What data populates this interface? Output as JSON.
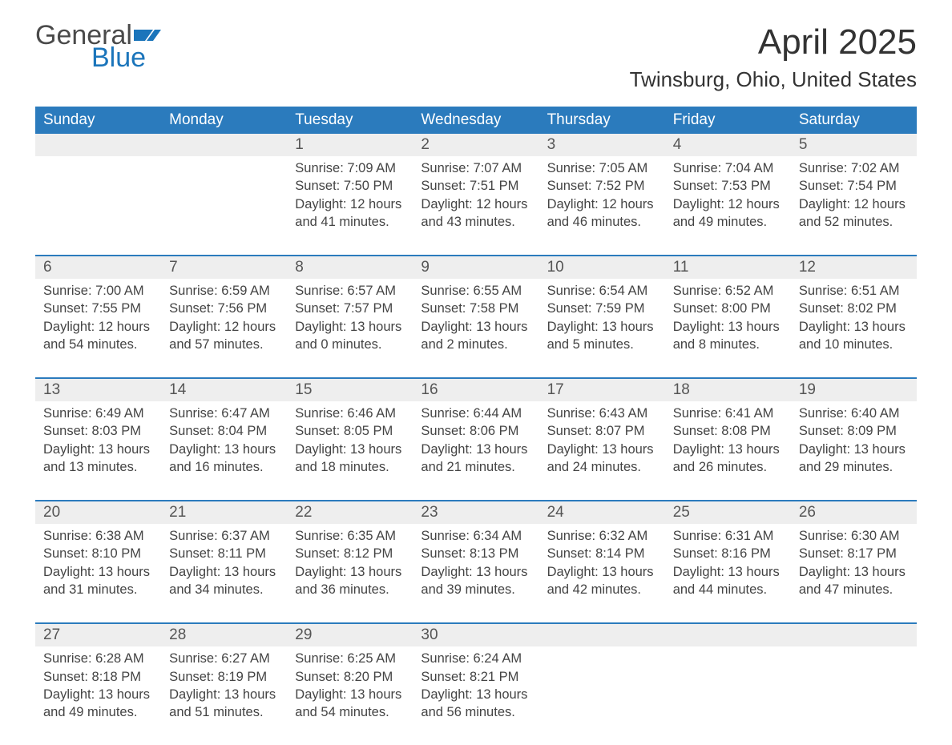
{
  "logo": {
    "word1": "General",
    "word2": "Blue",
    "flag_color": "#1b75bb"
  },
  "title": "April 2025",
  "location": "Twinsburg, Ohio, United States",
  "colors": {
    "header_bg": "#2b7bbd",
    "header_text": "#ffffff",
    "daynum_bg": "#eeeeee",
    "week_border": "#2b7bbd",
    "body_text": "#444444",
    "title_text": "#333333",
    "logo_gray": "#4a4a4a",
    "logo_blue": "#1b75bb",
    "page_bg": "#ffffff"
  },
  "days_of_week": [
    "Sunday",
    "Monday",
    "Tuesday",
    "Wednesday",
    "Thursday",
    "Friday",
    "Saturday"
  ],
  "weeks": [
    [
      {
        "n": "",
        "sr": "",
        "ss": "",
        "dl": ""
      },
      {
        "n": "",
        "sr": "",
        "ss": "",
        "dl": ""
      },
      {
        "n": "1",
        "sr": "Sunrise: 7:09 AM",
        "ss": "Sunset: 7:50 PM",
        "dl": "Daylight: 12 hours and 41 minutes."
      },
      {
        "n": "2",
        "sr": "Sunrise: 7:07 AM",
        "ss": "Sunset: 7:51 PM",
        "dl": "Daylight: 12 hours and 43 minutes."
      },
      {
        "n": "3",
        "sr": "Sunrise: 7:05 AM",
        "ss": "Sunset: 7:52 PM",
        "dl": "Daylight: 12 hours and 46 minutes."
      },
      {
        "n": "4",
        "sr": "Sunrise: 7:04 AM",
        "ss": "Sunset: 7:53 PM",
        "dl": "Daylight: 12 hours and 49 minutes."
      },
      {
        "n": "5",
        "sr": "Sunrise: 7:02 AM",
        "ss": "Sunset: 7:54 PM",
        "dl": "Daylight: 12 hours and 52 minutes."
      }
    ],
    [
      {
        "n": "6",
        "sr": "Sunrise: 7:00 AM",
        "ss": "Sunset: 7:55 PM",
        "dl": "Daylight: 12 hours and 54 minutes."
      },
      {
        "n": "7",
        "sr": "Sunrise: 6:59 AM",
        "ss": "Sunset: 7:56 PM",
        "dl": "Daylight: 12 hours and 57 minutes."
      },
      {
        "n": "8",
        "sr": "Sunrise: 6:57 AM",
        "ss": "Sunset: 7:57 PM",
        "dl": "Daylight: 13 hours and 0 minutes."
      },
      {
        "n": "9",
        "sr": "Sunrise: 6:55 AM",
        "ss": "Sunset: 7:58 PM",
        "dl": "Daylight: 13 hours and 2 minutes."
      },
      {
        "n": "10",
        "sr": "Sunrise: 6:54 AM",
        "ss": "Sunset: 7:59 PM",
        "dl": "Daylight: 13 hours and 5 minutes."
      },
      {
        "n": "11",
        "sr": "Sunrise: 6:52 AM",
        "ss": "Sunset: 8:00 PM",
        "dl": "Daylight: 13 hours and 8 minutes."
      },
      {
        "n": "12",
        "sr": "Sunrise: 6:51 AM",
        "ss": "Sunset: 8:02 PM",
        "dl": "Daylight: 13 hours and 10 minutes."
      }
    ],
    [
      {
        "n": "13",
        "sr": "Sunrise: 6:49 AM",
        "ss": "Sunset: 8:03 PM",
        "dl": "Daylight: 13 hours and 13 minutes."
      },
      {
        "n": "14",
        "sr": "Sunrise: 6:47 AM",
        "ss": "Sunset: 8:04 PM",
        "dl": "Daylight: 13 hours and 16 minutes."
      },
      {
        "n": "15",
        "sr": "Sunrise: 6:46 AM",
        "ss": "Sunset: 8:05 PM",
        "dl": "Daylight: 13 hours and 18 minutes."
      },
      {
        "n": "16",
        "sr": "Sunrise: 6:44 AM",
        "ss": "Sunset: 8:06 PM",
        "dl": "Daylight: 13 hours and 21 minutes."
      },
      {
        "n": "17",
        "sr": "Sunrise: 6:43 AM",
        "ss": "Sunset: 8:07 PM",
        "dl": "Daylight: 13 hours and 24 minutes."
      },
      {
        "n": "18",
        "sr": "Sunrise: 6:41 AM",
        "ss": "Sunset: 8:08 PM",
        "dl": "Daylight: 13 hours and 26 minutes."
      },
      {
        "n": "19",
        "sr": "Sunrise: 6:40 AM",
        "ss": "Sunset: 8:09 PM",
        "dl": "Daylight: 13 hours and 29 minutes."
      }
    ],
    [
      {
        "n": "20",
        "sr": "Sunrise: 6:38 AM",
        "ss": "Sunset: 8:10 PM",
        "dl": "Daylight: 13 hours and 31 minutes."
      },
      {
        "n": "21",
        "sr": "Sunrise: 6:37 AM",
        "ss": "Sunset: 8:11 PM",
        "dl": "Daylight: 13 hours and 34 minutes."
      },
      {
        "n": "22",
        "sr": "Sunrise: 6:35 AM",
        "ss": "Sunset: 8:12 PM",
        "dl": "Daylight: 13 hours and 36 minutes."
      },
      {
        "n": "23",
        "sr": "Sunrise: 6:34 AM",
        "ss": "Sunset: 8:13 PM",
        "dl": "Daylight: 13 hours and 39 minutes."
      },
      {
        "n": "24",
        "sr": "Sunrise: 6:32 AM",
        "ss": "Sunset: 8:14 PM",
        "dl": "Daylight: 13 hours and 42 minutes."
      },
      {
        "n": "25",
        "sr": "Sunrise: 6:31 AM",
        "ss": "Sunset: 8:16 PM",
        "dl": "Daylight: 13 hours and 44 minutes."
      },
      {
        "n": "26",
        "sr": "Sunrise: 6:30 AM",
        "ss": "Sunset: 8:17 PM",
        "dl": "Daylight: 13 hours and 47 minutes."
      }
    ],
    [
      {
        "n": "27",
        "sr": "Sunrise: 6:28 AM",
        "ss": "Sunset: 8:18 PM",
        "dl": "Daylight: 13 hours and 49 minutes."
      },
      {
        "n": "28",
        "sr": "Sunrise: 6:27 AM",
        "ss": "Sunset: 8:19 PM",
        "dl": "Daylight: 13 hours and 51 minutes."
      },
      {
        "n": "29",
        "sr": "Sunrise: 6:25 AM",
        "ss": "Sunset: 8:20 PM",
        "dl": "Daylight: 13 hours and 54 minutes."
      },
      {
        "n": "30",
        "sr": "Sunrise: 6:24 AM",
        "ss": "Sunset: 8:21 PM",
        "dl": "Daylight: 13 hours and 56 minutes."
      },
      {
        "n": "",
        "sr": "",
        "ss": "",
        "dl": ""
      },
      {
        "n": "",
        "sr": "",
        "ss": "",
        "dl": ""
      },
      {
        "n": "",
        "sr": "",
        "ss": "",
        "dl": ""
      }
    ]
  ]
}
